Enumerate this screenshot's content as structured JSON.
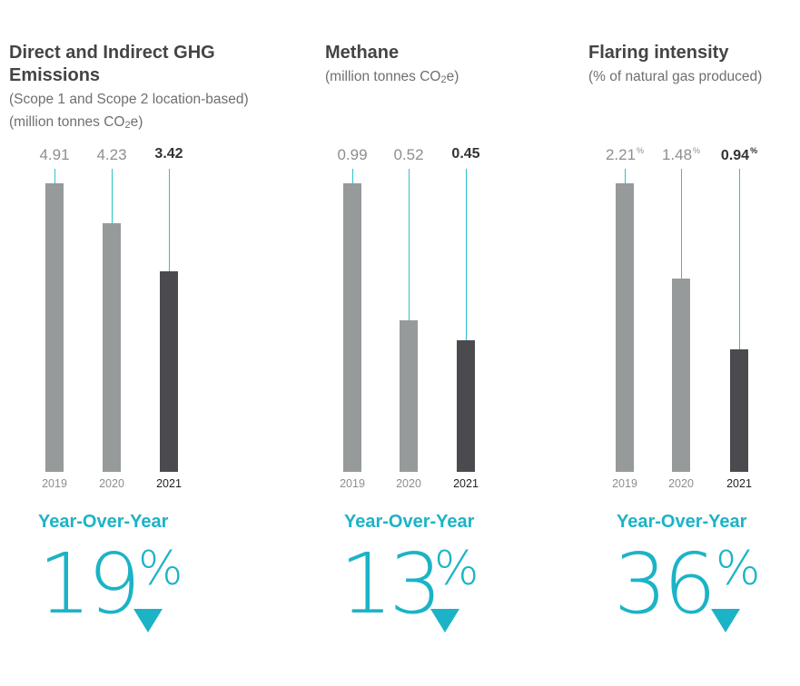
{
  "panels": [
    {
      "title_lines": [
        "Direct and Indirect GHG",
        "Emissions"
      ],
      "subtitle_lines": [
        "(Scope 1 and Scope 2 location-based)",
        "(million tonnes CO",
        "2",
        "e)"
      ],
      "yoy_label": "Year-Over-Year",
      "yoy_value": "19",
      "percent_sign": "%",
      "change_icon": "down-triangle-icon"
    },
    {
      "title_lines": [
        "Methane"
      ],
      "subtitle_lines": [
        "(million tonnes CO",
        "2",
        "e)"
      ],
      "yoy_label": "Year-Over-Year",
      "yoy_value": "13",
      "percent_sign": "%",
      "change_icon": "down-triangle-icon"
    },
    {
      "title_lines": [
        "Flaring intensity"
      ],
      "subtitle_lines": [
        "(% of natural gas produced)"
      ],
      "yoy_label": "Year-Over-Year",
      "yoy_value": "36",
      "percent_sign": "%",
      "change_icon": "down-triangle-icon"
    }
  ],
  "chart_data": [
    {
      "type": "bar",
      "title": "Direct and Indirect GHG Emissions",
      "subtitle": "(Scope 1 and Scope 2 location-based) (million tonnes CO2e)",
      "categories": [
        "2019",
        "2020",
        "2021"
      ],
      "values": [
        4.91,
        4.23,
        3.42
      ],
      "value_labels": [
        "4.91",
        "4.23",
        "3.42"
      ],
      "highlight_category": "2021",
      "colors": {
        "past": "#979a9a",
        "current": "#4b4b4f",
        "leader": "#2cc0cf"
      }
    },
    {
      "type": "bar",
      "title": "Methane",
      "subtitle": "(million tonnes CO2e)",
      "categories": [
        "2019",
        "2020",
        "2021"
      ],
      "values": [
        0.99,
        0.52,
        0.45
      ],
      "value_labels": [
        "0.99",
        "0.52",
        "0.45"
      ],
      "highlight_category": "2021",
      "colors": {
        "past": "#979a9a",
        "current": "#4b4b4f",
        "leader": "#2cc0cf"
      }
    },
    {
      "type": "bar",
      "title": "Flaring intensity",
      "subtitle": "(% of natural gas produced)",
      "categories": [
        "2019",
        "2020",
        "2021"
      ],
      "values": [
        2.21,
        1.48,
        0.94
      ],
      "value_labels": [
        "2.21",
        "1.48",
        "0.94"
      ],
      "value_suffix": "%",
      "highlight_category": "2021",
      "colors": {
        "past": "#979a9a",
        "current": "#4b4b4f",
        "leader": "#2cc0cf"
      }
    }
  ],
  "accent_color": "#1cb3c6"
}
